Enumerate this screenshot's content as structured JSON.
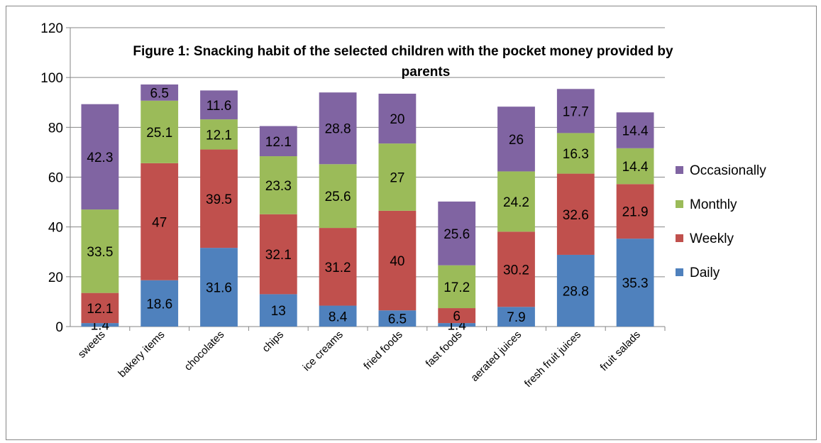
{
  "chart_data": {
    "type": "bar",
    "stacked": true,
    "title_line1": "Figure 1: Snacking habit of the selected children with the pocket money provided by",
    "title_line2": "parents",
    "categories": [
      "sweets",
      "bakery items",
      "chocolates",
      "chips",
      "ice creams",
      "fried foods",
      "fast foods",
      "aerated juices",
      "fresh fruit juices",
      "fruit salads"
    ],
    "series": [
      {
        "name": "Daily",
        "color": "#4f81bd",
        "values": [
          1.4,
          18.6,
          31.6,
          13,
          8.4,
          6.5,
          1.4,
          7.9,
          28.8,
          35.3
        ]
      },
      {
        "name": "Weekly",
        "color": "#c0504d",
        "values": [
          12.1,
          47,
          39.5,
          32.1,
          31.2,
          40,
          6,
          30.2,
          32.6,
          21.9
        ]
      },
      {
        "name": "Monthly",
        "color": "#9bbb59",
        "values": [
          33.5,
          25.1,
          12.1,
          23.3,
          25.6,
          27,
          17.2,
          24.2,
          16.3,
          14.4
        ]
      },
      {
        "name": "Occasionally",
        "color": "#8064a2",
        "values": [
          42.3,
          6.5,
          11.6,
          12.1,
          28.8,
          20,
          25.6,
          26,
          17.7,
          14.4
        ]
      }
    ],
    "yticks": [
      "0",
      "20",
      "40",
      "60",
      "80",
      "100",
      "120"
    ],
    "ylim": [
      0,
      120
    ],
    "grid": true,
    "legend_position": "right",
    "xlabel": "",
    "ylabel": ""
  }
}
